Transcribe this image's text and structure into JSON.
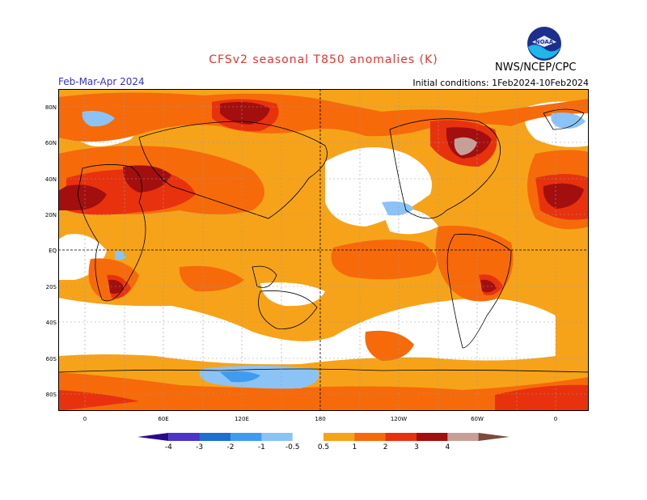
{
  "title": "CFSv2 seasonal T850 anomalies (K)",
  "period": "Feb-Mar-Apr 2024",
  "initial_conditions": "Initial conditions: 1Feb2024-10Feb2024",
  "agency": "NWS/NCEP/CPC",
  "logo_text": "NOAA",
  "lat_labels": [
    "80N",
    "60N",
    "40N",
    "20N",
    "EQ",
    "20S",
    "40S",
    "60S",
    "80S"
  ],
  "lon_labels": [
    "0",
    "60E",
    "120E",
    "180",
    "120W",
    "60W",
    "0"
  ],
  "colorbar": {
    "labels": [
      "-4",
      "-3",
      "-2",
      "-1",
      "-0.5",
      "0.5",
      "1",
      "2",
      "3",
      "4"
    ],
    "colors": [
      "#2a0a8a",
      "#4b34c8",
      "#1f6fd0",
      "#3e9cf0",
      "#8cc3f5",
      "#ffffff",
      "#f6a31a",
      "#f66a0a",
      "#e8320e",
      "#a30f0f",
      "#c6a098",
      "#7b4a3c"
    ]
  }
}
